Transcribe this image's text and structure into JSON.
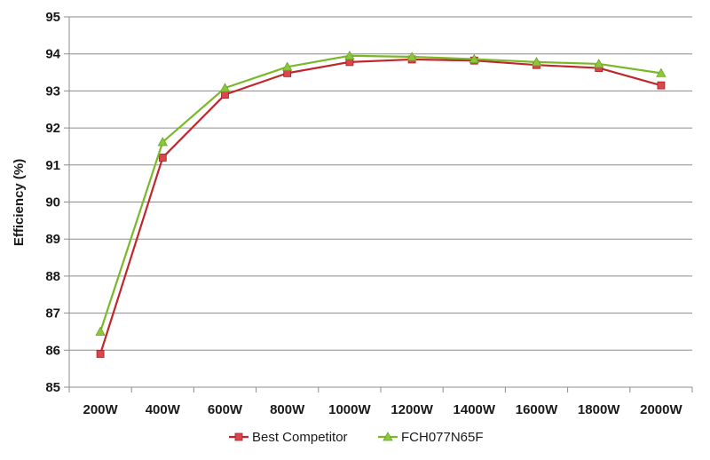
{
  "chart_data": {
    "type": "line",
    "title": "",
    "xlabel": "",
    "ylabel": "Efficiency (%)",
    "categories": [
      "200W",
      "400W",
      "600W",
      "800W",
      "1000W",
      "1200W",
      "1400W",
      "1600W",
      "1800W",
      "2000W"
    ],
    "ylim": [
      85,
      95
    ],
    "yticks": [
      "85",
      "86",
      "87",
      "88",
      "89",
      "90",
      "91",
      "92",
      "93",
      "94",
      "95"
    ],
    "grid": "horizontal",
    "legend_position": "bottom",
    "series": [
      {
        "name": "Best Competitor",
        "marker": "square",
        "color": "#c0272d",
        "marker_color": "#d9474d",
        "values": [
          85.9,
          91.2,
          92.9,
          93.48,
          93.78,
          93.85,
          93.82,
          93.7,
          93.62,
          93.15
        ]
      },
      {
        "name": "FCH077N65F",
        "marker": "triangle",
        "color": "#7ab829",
        "marker_color": "#8cc63f",
        "values": [
          86.5,
          91.62,
          93.08,
          93.65,
          93.95,
          93.92,
          93.86,
          93.78,
          93.73,
          93.48
        ]
      }
    ]
  }
}
